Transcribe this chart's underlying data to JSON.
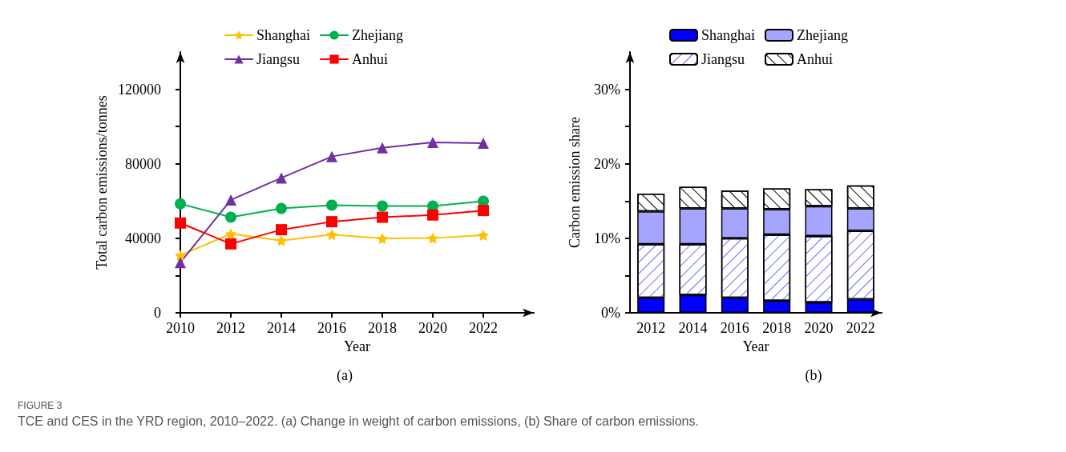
{
  "chart_data": [
    {
      "type": "line",
      "title": "(a)",
      "xlabel": "Year",
      "ylabel": "Total carbon emissions/tonnes",
      "x": [
        2010,
        2012,
        2014,
        2016,
        2018,
        2020,
        2022
      ],
      "series": [
        {
          "name": "Shanghai",
          "color": "#ffc000",
          "marker": "star",
          "values": [
            30800,
            42400,
            38800,
            42000,
            39900,
            40100,
            41700
          ]
        },
        {
          "name": "Jiangsu",
          "color": "#7030a0",
          "marker": "triangle",
          "values": [
            27000,
            60600,
            72400,
            83900,
            88600,
            91500,
            91000
          ]
        },
        {
          "name": "Zhejiang",
          "color": "#00b050",
          "marker": "circle",
          "values": [
            58500,
            51300,
            56000,
            57800,
            57300,
            57300,
            59900
          ]
        },
        {
          "name": "Anhui",
          "color": "#ff0000",
          "marker": "square",
          "values": [
            48200,
            37000,
            44600,
            48900,
            51300,
            52500,
            54900
          ]
        }
      ],
      "xlim": [
        2010,
        2024
      ],
      "xticks": [
        2010,
        2012,
        2014,
        2016,
        2018,
        2020,
        2022
      ],
      "ylim": [
        0,
        140000
      ],
      "yticks": [
        0,
        {
          "value": 20000,
          "label": null
        },
        40000,
        {
          "value": 60000,
          "label": null
        },
        80000,
        {
          "value": 100000,
          "label": null
        },
        120000
      ],
      "grid": false,
      "legend": "top",
      "annotations": [
        "FIGURE 3",
        "TCE and CES in the YRD region, 2010–2022. (a) Change in weight of carbon emissions, (b) Share of carbon emissions."
      ]
    },
    {
      "type": "bar",
      "title": "(b)",
      "xlabel": "Year",
      "ylabel": "Carbon emission share",
      "stacked": true,
      "categories": [
        "2012",
        "2014",
        "2016",
        "2018",
        "2020",
        "2022"
      ],
      "series": [
        {
          "name": "Shanghai",
          "color": "#0000ff",
          "values": [
            2.0,
            2.4,
            2.0,
            1.6,
            1.4,
            1.8
          ]
        },
        {
          "name": "Jiangsu",
          "color": "#ffffff",
          "values": [
            7.2,
            6.8,
            8.0,
            8.9,
            8.9,
            9.2
          ]
        },
        {
          "name": "Zhejiang",
          "color": "#a5a5ff",
          "values": [
            4.4,
            4.8,
            4.0,
            3.4,
            4.0,
            3.0
          ]
        },
        {
          "name": "Anhui",
          "color": "#ffffff",
          "values": [
            2.4,
            2.9,
            2.4,
            2.8,
            2.3,
            3.1
          ]
        }
      ],
      "ylim": [
        0,
        35
      ],
      "yticks": [
        {
          "value": 0,
          "label": "0%"
        },
        {
          "value": 5,
          "label": null
        },
        {
          "value": 10,
          "label": "10%"
        },
        {
          "value": 15,
          "label": null
        },
        {
          "value": 20,
          "label": "20%"
        },
        {
          "value": 25,
          "label": null
        },
        {
          "value": 30,
          "label": "30%"
        }
      ],
      "grid": false,
      "legend": "top"
    }
  ]
}
